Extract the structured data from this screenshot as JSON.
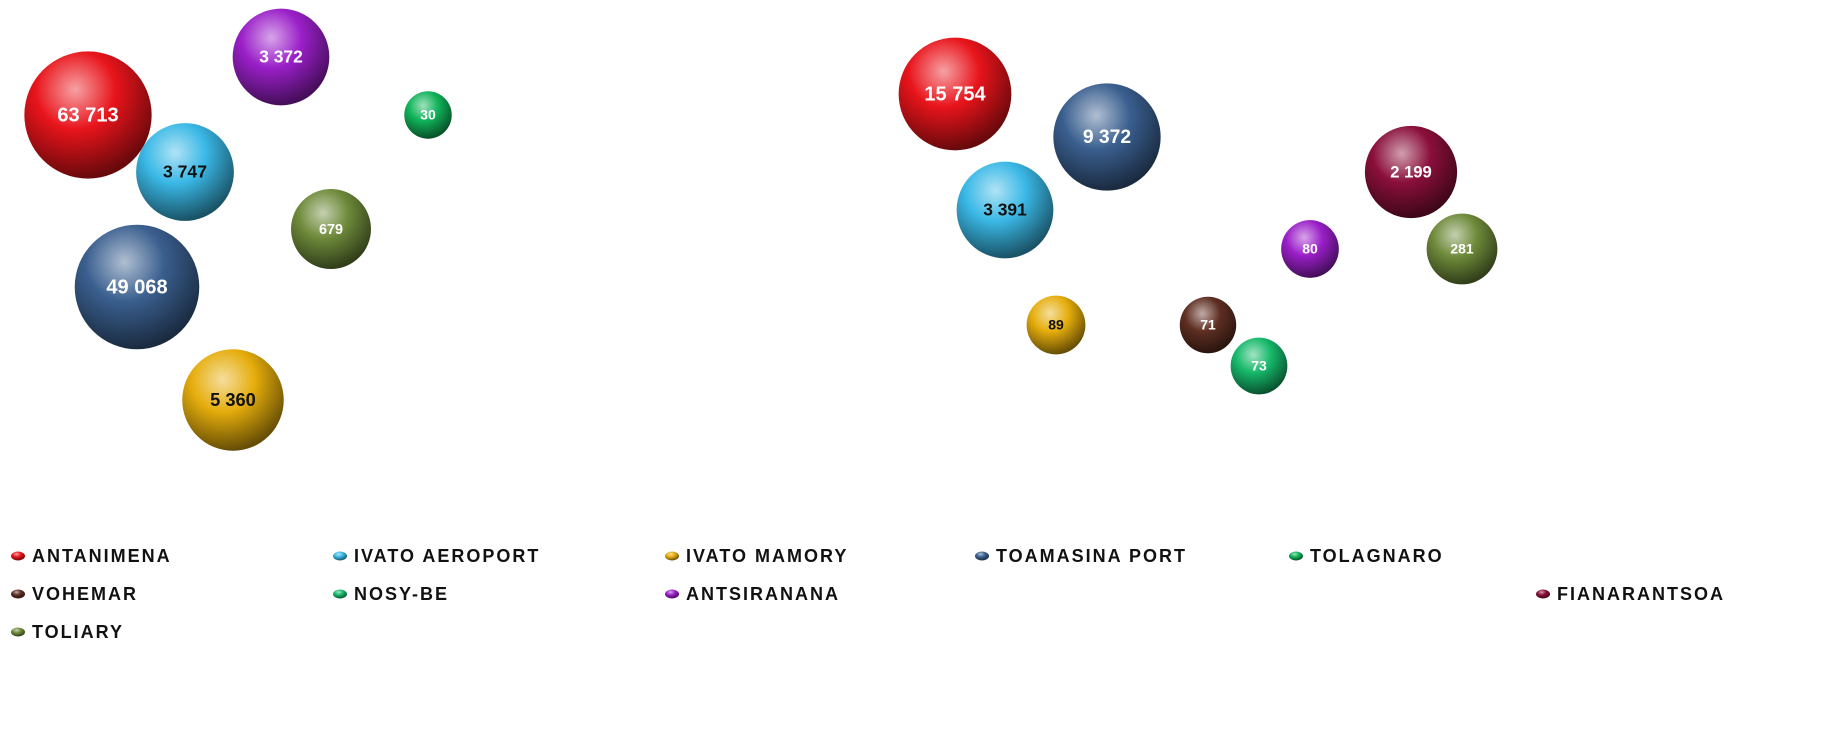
{
  "chart_data": {
    "type": "bubble",
    "series": [
      {
        "name": "ANTANIMENA",
        "color": "#e8141b",
        "values": [
          63713,
          15754
        ],
        "value_labels": [
          "63 713",
          "15 754"
        ]
      },
      {
        "name": "IVATO AEROPORT",
        "color": "#3ab8e6",
        "values": [
          3747,
          3391
        ],
        "value_labels": [
          "3 747",
          "3 391"
        ]
      },
      {
        "name": "IVATO MAMORY",
        "color": "#e5ad0c",
        "values": [
          5360,
          89
        ],
        "value_labels": [
          "5 360",
          null
        ]
      },
      {
        "name": "TOAMASINA PORT",
        "color": "#3a5f8f",
        "values": [
          49068,
          9372
        ],
        "value_labels": [
          "49 068",
          "9 372"
        ]
      },
      {
        "name": "TOLAGNARO",
        "color": "#11b35a",
        "values": [
          30,
          null
        ]
      },
      {
        "name": "VOHEMAR",
        "color": "#5e2e22",
        "values": [
          null,
          71
        ]
      },
      {
        "name": "NOSY-BE",
        "color": "#16b86a",
        "values": [
          null,
          73
        ]
      },
      {
        "name": "ANTSIRANANA",
        "color": "#9a1fc8",
        "values": [
          3372,
          80
        ],
        "value_labels": [
          "3 372",
          null
        ]
      },
      {
        "name": "FIANARANTSOA",
        "color": "#8a0f3a",
        "values": [
          null,
          2199
        ],
        "value_labels": [
          null,
          "2 199"
        ]
      },
      {
        "name": "TOLIARY",
        "color": "#6e8a3a",
        "values": [
          679,
          281
        ]
      }
    ]
  }
}
